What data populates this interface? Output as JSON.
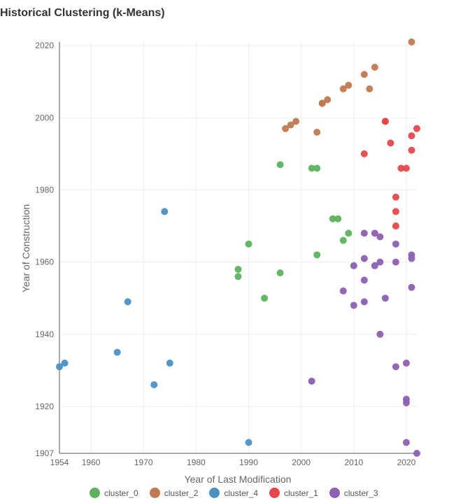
{
  "chart_data": {
    "type": "scatter",
    "title": "Historical Clustering (k-Means)",
    "xlabel": "Year of Last Modification",
    "ylabel": "Year of Construction",
    "xlim": [
      1954,
      2022
    ],
    "ylim": [
      1907,
      2021
    ],
    "x_ticks": [
      1954,
      1960,
      1970,
      1980,
      1990,
      2000,
      2010,
      2020
    ],
    "y_ticks": [
      1907,
      1920,
      1940,
      1960,
      1980,
      2000,
      2020
    ],
    "grid": true,
    "legend_position": "bottom",
    "series": [
      {
        "name": "cluster_0",
        "color": "#5cb35c",
        "points": [
          [
            1996,
            1987
          ],
          [
            2002,
            1986
          ],
          [
            2003,
            1986
          ],
          [
            2006,
            1972
          ],
          [
            2007,
            1972
          ],
          [
            2009,
            1968
          ],
          [
            2008,
            1966
          ],
          [
            1990,
            1965
          ],
          [
            2003,
            1962
          ],
          [
            1988,
            1958
          ],
          [
            1996,
            1957
          ],
          [
            1988,
            1956
          ],
          [
            1993,
            1950
          ]
        ]
      },
      {
        "name": "cluster_2",
        "color": "#c17a50",
        "points": [
          [
            2021,
            2021
          ],
          [
            2014,
            2014
          ],
          [
            2012,
            2012
          ],
          [
            2009,
            2009
          ],
          [
            2008,
            2008
          ],
          [
            2013,
            2008
          ],
          [
            2005,
            2005
          ],
          [
            2004,
            2004
          ],
          [
            2004,
            2004
          ],
          [
            1999,
            1999
          ],
          [
            1998,
            1998
          ],
          [
            1997,
            1997
          ],
          [
            2003,
            1996
          ]
        ]
      },
      {
        "name": "cluster_4",
        "color": "#4a90c4",
        "points": [
          [
            1974,
            1974
          ],
          [
            1967,
            1949
          ],
          [
            1965,
            1935
          ],
          [
            1955,
            1932
          ],
          [
            1975,
            1932
          ],
          [
            1954,
            1931
          ],
          [
            1972,
            1926
          ],
          [
            1990,
            1910
          ]
        ]
      },
      {
        "name": "cluster_1",
        "color": "#e8474a",
        "points": [
          [
            2016,
            1999
          ],
          [
            2016,
            1999
          ],
          [
            2022,
            1997
          ],
          [
            2021,
            1995
          ],
          [
            2017,
            1993
          ],
          [
            2021,
            1991
          ],
          [
            2012,
            1990
          ],
          [
            2019,
            1986
          ],
          [
            2020,
            1986
          ],
          [
            2018,
            1978
          ],
          [
            2018,
            1974
          ],
          [
            2018,
            1970
          ]
        ]
      },
      {
        "name": "cluster_3",
        "color": "#8e5fb2",
        "points": [
          [
            2012,
            1968
          ],
          [
            2014,
            1968
          ],
          [
            2015,
            1967
          ],
          [
            2018,
            1965
          ],
          [
            2021,
            1962
          ],
          [
            2012,
            1961
          ],
          [
            2021,
            1961
          ],
          [
            2015,
            1960
          ],
          [
            2018,
            1960
          ],
          [
            2010,
            1959
          ],
          [
            2014,
            1959
          ],
          [
            2012,
            1955
          ],
          [
            2021,
            1953
          ],
          [
            2008,
            1952
          ],
          [
            2016,
            1950
          ],
          [
            2012,
            1949
          ],
          [
            2010,
            1948
          ],
          [
            2015,
            1940
          ],
          [
            2018,
            1931
          ],
          [
            2020,
            1932
          ],
          [
            2002,
            1927
          ],
          [
            2020,
            1922
          ],
          [
            2020,
            1921
          ],
          [
            2020,
            1910
          ],
          [
            2022,
            1907
          ]
        ]
      }
    ]
  }
}
